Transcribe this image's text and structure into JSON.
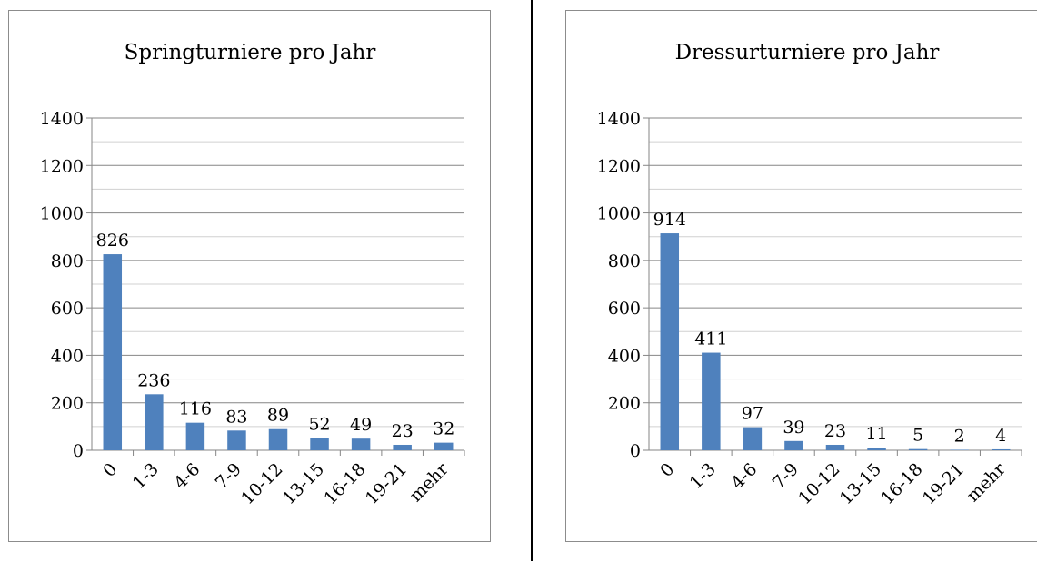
{
  "chart_data": [
    {
      "type": "bar",
      "title": "Springturniere pro Jahr",
      "categories": [
        "0",
        "1-3",
        "4-6",
        "7-9",
        "10-12",
        "13-15",
        "16-18",
        "19-21",
        "mehr"
      ],
      "values": [
        826,
        236,
        116,
        83,
        89,
        52,
        49,
        23,
        32
      ],
      "ylim": [
        0,
        1400
      ],
      "yticks": [
        "0",
        "200",
        "400",
        "600",
        "800",
        "1000",
        "1200",
        "1400"
      ],
      "xlabel": "",
      "ylabel": "",
      "grid": true,
      "legend": "none",
      "bar_color": "#4f81bd"
    },
    {
      "type": "bar",
      "title": "Dressurturniere pro Jahr",
      "categories": [
        "0",
        "1-3",
        "4-6",
        "7-9",
        "10-12",
        "13-15",
        "16-18",
        "19-21",
        "mehr"
      ],
      "values": [
        914,
        411,
        97,
        39,
        23,
        11,
        5,
        2,
        4
      ],
      "ylim": [
        0,
        1400
      ],
      "yticks": [
        "0",
        "200",
        "400",
        "600",
        "800",
        "1000",
        "1200",
        "1400"
      ],
      "xlabel": "",
      "ylabel": "",
      "grid": true,
      "legend": "none",
      "bar_color": "#4f81bd"
    }
  ]
}
